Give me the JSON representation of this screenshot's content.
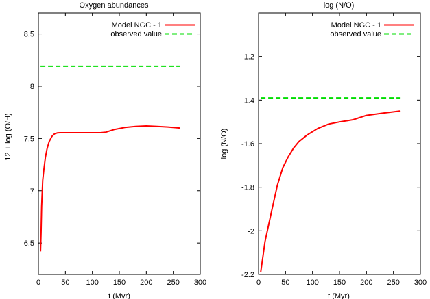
{
  "chart_data": [
    {
      "type": "line",
      "title": "Oxygen abundances",
      "xlabel": "t (Myr)",
      "ylabel": "12 + log (O/H)",
      "xlim": [
        0,
        300
      ],
      "ylim": [
        6.2,
        8.7
      ],
      "xticks": [
        0,
        50,
        100,
        150,
        200,
        250,
        300
      ],
      "yticks": [
        6.5,
        7,
        7.5,
        8,
        8.5
      ],
      "ytick_labels": [
        "6.5",
        "7",
        "7.5",
        "8",
        "8.5"
      ],
      "legend_position": "top-right",
      "series": [
        {
          "name": "Model NGC - 1",
          "style": "solid",
          "color": "#ff0000",
          "x": [
            4,
            5,
            6,
            8,
            10,
            13,
            16,
            20,
            25,
            30,
            35,
            40,
            60,
            80,
            100,
            115,
            125,
            140,
            160,
            180,
            200,
            220,
            240,
            262
          ],
          "y": [
            6.42,
            6.6,
            6.85,
            7.1,
            7.2,
            7.32,
            7.4,
            7.47,
            7.52,
            7.545,
            7.553,
            7.555,
            7.555,
            7.555,
            7.555,
            7.555,
            7.56,
            7.585,
            7.605,
            7.615,
            7.62,
            7.615,
            7.61,
            7.6
          ]
        },
        {
          "name": "observed value",
          "style": "dashed",
          "color": "#00dd00",
          "x": [
            4,
            262
          ],
          "y": [
            8.19,
            8.19
          ]
        }
      ]
    },
    {
      "type": "line",
      "title": "log (N/O)",
      "xlabel": "t (Myr)",
      "ylabel": "log (N/O)",
      "xlim": [
        0,
        300
      ],
      "ylim": [
        -2.2,
        -1.0
      ],
      "xticks": [
        0,
        50,
        100,
        150,
        200,
        250,
        300
      ],
      "yticks": [
        -2.2,
        -2,
        -1.8,
        -1.6,
        -1.4,
        -1.2
      ],
      "ytick_labels": [
        "-2.2",
        "-2",
        "-1.8",
        "-1.6",
        "-1.4",
        "-1.2"
      ],
      "legend_position": "top-right",
      "series": [
        {
          "name": "Model NGC - 1",
          "style": "solid",
          "color": "#ff0000",
          "x": [
            4,
            8,
            12,
            18,
            25,
            35,
            45,
            55,
            65,
            75,
            90,
            110,
            130,
            150,
            175,
            200,
            230,
            262
          ],
          "y": [
            -2.19,
            -2.12,
            -2.05,
            -1.98,
            -1.9,
            -1.79,
            -1.71,
            -1.66,
            -1.62,
            -1.59,
            -1.56,
            -1.53,
            -1.51,
            -1.5,
            -1.49,
            -1.47,
            -1.46,
            -1.45
          ]
        },
        {
          "name": "observed value",
          "style": "dashed",
          "color": "#00dd00",
          "x": [
            4,
            262
          ],
          "y": [
            -1.39,
            -1.39
          ]
        }
      ]
    }
  ]
}
